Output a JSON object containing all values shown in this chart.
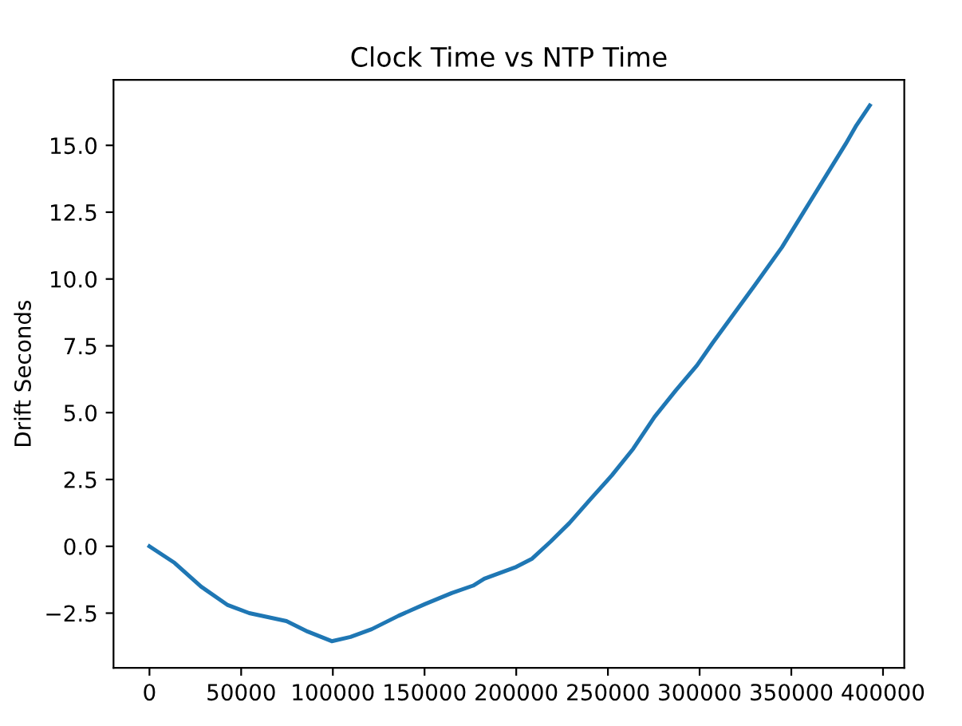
{
  "chart_data": {
    "type": "line",
    "title": "Clock Time vs NTP Time",
    "ylabel": "Drift Seconds",
    "x": [
      0,
      13700,
      28200,
      42700,
      54400,
      74700,
      86300,
      99400,
      109600,
      121200,
      135800,
      150300,
      164800,
      176500,
      182600,
      200000,
      208700,
      218800,
      229000,
      240600,
      252200,
      263800,
      275400,
      287000,
      298600,
      307200,
      318800,
      330400,
      344900,
      356500,
      368100,
      379700,
      385500,
      392800
    ],
    "series": [
      {
        "color": "#1f77b4",
        "values": [
          0,
          -0.62,
          -1.51,
          -2.2,
          -2.5,
          -2.8,
          -3.19,
          -3.55,
          -3.39,
          -3.1,
          -2.6,
          -2.16,
          -1.75,
          -1.47,
          -1.21,
          -0.77,
          -0.46,
          0.18,
          0.87,
          1.77,
          2.66,
          3.65,
          4.84,
          5.83,
          6.77,
          7.62,
          8.71,
          9.8,
          11.19,
          12.48,
          13.77,
          15.06,
          15.75,
          16.49
        ]
      }
    ],
    "xlim": [
      -19600,
      411600
    ],
    "ylim": [
      -4.55,
      17.45
    ],
    "xticks": [
      0,
      50000,
      100000,
      150000,
      200000,
      250000,
      300000,
      350000,
      400000
    ],
    "yticks": [
      {
        "value": -2.5,
        "label": "−2.5"
      },
      {
        "value": 0,
        "label": "0.0"
      },
      {
        "value": 2.5,
        "label": "2.5"
      },
      {
        "value": 5,
        "label": "5.0"
      },
      {
        "value": 7.5,
        "label": "7.5"
      },
      {
        "value": 10,
        "label": "10.0"
      },
      {
        "value": 12.5,
        "label": "12.5"
      },
      {
        "value": 15,
        "label": "15.0"
      }
    ],
    "grid": false,
    "legend": false
  }
}
